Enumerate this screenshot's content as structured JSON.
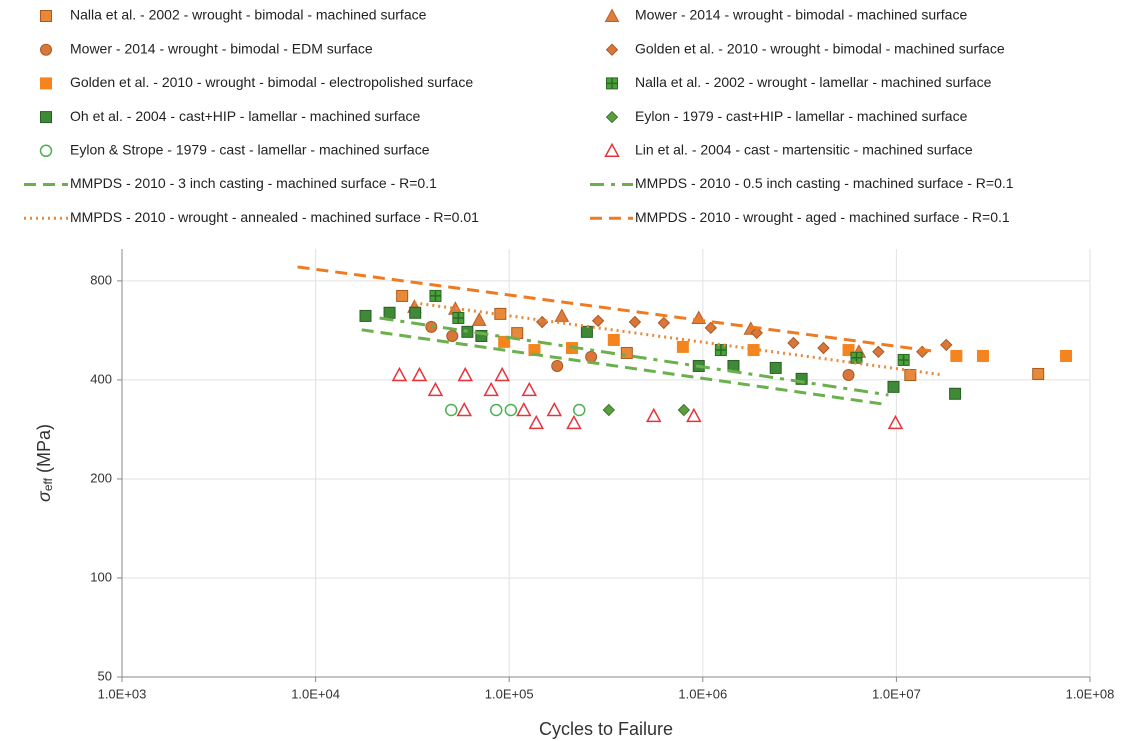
{
  "chart_data": {
    "type": "scatter",
    "x_label": "Cycles to Failure",
    "y_label": {
      "symbol": "σ",
      "subscript": "eff",
      "unit": " (MPa)"
    },
    "xscale": "log",
    "yscale": "log",
    "grid": true,
    "xlim": [
      1000,
      100000000
    ],
    "ylim": [
      50,
      1000
    ],
    "xticks": [
      {
        "value": 1000,
        "label": "1.0E+03"
      },
      {
        "value": 10000,
        "label": "1.0E+04"
      },
      {
        "value": 100000,
        "label": "1.0E+05"
      },
      {
        "value": 1000000,
        "label": "1.0E+06"
      },
      {
        "value": 10000000,
        "label": "1.0E+07"
      },
      {
        "value": 100000000,
        "label": "1.0E+08"
      }
    ],
    "yticks": [
      50,
      100,
      200,
      400,
      800
    ],
    "series": [
      {
        "name": "Nalla et al. - 2002 - wrought - bimodal - machined surface",
        "marker": "square",
        "color": "#e8893a",
        "edge": "#a95a1c",
        "x": [
          28000,
          90000,
          110000,
          405000,
          11800000,
          54000000
        ],
        "values": [
          720,
          635,
          555,
          483,
          414,
          417
        ]
      },
      {
        "name": "Mower - 2014 - wrought - bimodal - machined surface",
        "marker": "triangle",
        "color": "#df7d3b",
        "edge": "#b8602a",
        "x": [
          32400,
          52700,
          70000,
          187000,
          953000,
          1770000,
          6400000
        ],
        "values": [
          667,
          658,
          609,
          626,
          617,
          572,
          487
        ]
      },
      {
        "name": "Mower - 2014 - wrought - bimodal - EDM surface",
        "marker": "circle",
        "color": "#d9773a",
        "edge": "#a85a24",
        "x": [
          39600,
          50800,
          177000,
          265000,
          5660000
        ],
        "values": [
          580,
          544,
          441,
          470,
          414
        ]
      },
      {
        "name": "Golden et al. - 2010 - wrought - bimodal - machined surface",
        "marker": "diamond",
        "color": "#d9773a",
        "edge": "#a85a24",
        "x": [
          148000,
          288000,
          446000,
          629000,
          1100000,
          1900000,
          2940000,
          4200000,
          8070000,
          13600000,
          18100000
        ],
        "values": [
          600,
          605,
          600,
          596,
          576,
          556,
          518,
          500,
          487,
          487,
          511
        ]
      },
      {
        "name": "Golden et al. - 2010 - wrought - bimodal - electropolished surface",
        "marker": "square",
        "color": "#f5841f",
        "edge": "#f5841f",
        "x": [
          94200,
          135000,
          211000,
          347000,
          789000,
          1830000,
          5660000,
          20400000,
          28000000,
          75200000
        ],
        "values": [
          522,
          493,
          500,
          529,
          504,
          493,
          493,
          473,
          473,
          473
        ]
      },
      {
        "name": "Nalla et al. - 2002 - wrought - lamellar - machined surface",
        "marker": "square-plus",
        "color": "#4aa03a",
        "edge": "#2a6a22",
        "x": [
          41600,
          54600,
          1240000,
          6220000,
          10900000
        ],
        "values": [
          720,
          617,
          493,
          467,
          460
        ]
      },
      {
        "name": "Oh et al. - 2004 - cast+HIP - lamellar - machined surface",
        "marker": "square",
        "color": "#3f8a36",
        "edge": "#2a5e25",
        "x": [
          18100,
          24100,
          32700,
          60800,
          71800,
          252000,
          953000,
          1440000,
          2380000,
          3240000,
          9660000,
          20100000
        ],
        "values": [
          626,
          640,
          640,
          560,
          544,
          560,
          441,
          441,
          435,
          403,
          381,
          363
        ]
      },
      {
        "name": "Eylon - 1979 - cast+HIP - lamellar - machined surface",
        "marker": "diamond",
        "color": "#5a9e40",
        "edge": "#3f7a2c",
        "x": [
          327000,
          798000
        ],
        "values": [
          324,
          324
        ]
      },
      {
        "name": "Eylon & Strope - 1979 - cast - lamellar - machined surface",
        "marker": "circle-open",
        "color": "#4cb050",
        "edge": "#4cb050",
        "x": [
          50200,
          85700,
          102000,
          230000
        ],
        "values": [
          324,
          324,
          324,
          324
        ]
      },
      {
        "name": "Lin et al. - 2004 - cast - martensitic - machined surface",
        "marker": "triangle-open",
        "color": "#e8333a",
        "edge": "#e8333a",
        "x": [
          27100,
          34400,
          41600,
          58600,
          59300,
          80700,
          92000,
          119000,
          127000,
          138000,
          171000,
          216000,
          558000,
          899000,
          9890000
        ],
        "values": [
          414,
          414,
          373,
          324,
          414,
          373,
          414,
          324,
          373,
          296,
          324,
          296,
          311,
          311,
          296
        ]
      },
      {
        "name": "MMPDS - 2010 - 3 inch casting - machined surface - R=0.1",
        "marker": "none",
        "line": "12,7",
        "color": "#6ab04c",
        "x": [
          17300,
          9100000
        ],
        "values": [
          568,
          336
        ]
      },
      {
        "name": "MMPDS - 2010 - 0.5 inch casting  - machined surface - R=0.1",
        "marker": "none",
        "line": "14,7,4,7",
        "color": "#6ab04c",
        "x": [
          21400,
          9100000
        ],
        "values": [
          617,
          360
        ]
      },
      {
        "name": "MMPDS - 2010 - wrought - annealed - machined surface - R=0.01",
        "marker": "none",
        "line": "2,4",
        "color": "#e8893a",
        "x": [
          32400,
          17500000
        ],
        "values": [
          686,
          414
        ]
      },
      {
        "name": "MMPDS - 2010 - wrought - aged - machined surface - R=0.1",
        "marker": "none",
        "line": "12,7",
        "color": "#f07a20",
        "x": [
          8070,
          16400000
        ],
        "values": [
          882,
          487
        ]
      }
    ]
  }
}
